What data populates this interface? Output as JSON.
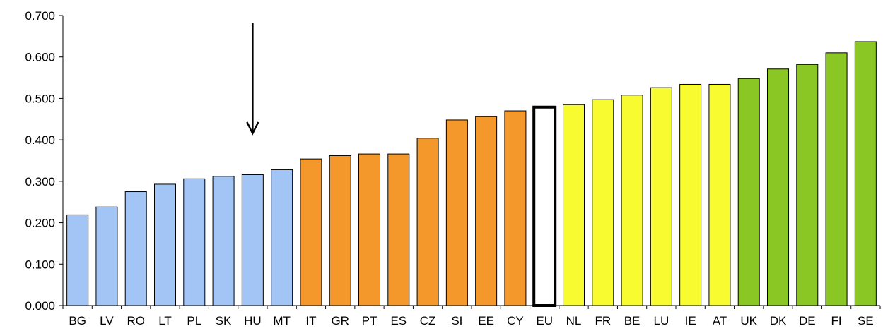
{
  "chart_data": {
    "type": "bar",
    "title": "",
    "xlabel": "",
    "ylabel": "",
    "ylim": [
      0,
      0.7
    ],
    "yticks": [
      "0.000",
      "0.100",
      "0.200",
      "0.300",
      "0.400",
      "0.500",
      "0.600",
      "0.700"
    ],
    "categories": [
      "BG",
      "LV",
      "RO",
      "LT",
      "PL",
      "SK",
      "HU",
      "MT",
      "IT",
      "GR",
      "PT",
      "ES",
      "CZ",
      "SI",
      "EE",
      "CY",
      "EU",
      "NL",
      "FR",
      "BE",
      "LU",
      "IE",
      "AT",
      "UK",
      "DK",
      "DE",
      "FI",
      "SE"
    ],
    "values": [
      0.219,
      0.238,
      0.275,
      0.293,
      0.306,
      0.312,
      0.316,
      0.328,
      0.354,
      0.362,
      0.366,
      0.366,
      0.404,
      0.448,
      0.456,
      0.47,
      0.479,
      0.485,
      0.497,
      0.508,
      0.526,
      0.534,
      0.534,
      0.548,
      0.571,
      0.582,
      0.61,
      0.637
    ],
    "groups": [
      "blue",
      "blue",
      "blue",
      "blue",
      "blue",
      "blue",
      "blue",
      "blue",
      "orange",
      "orange",
      "orange",
      "orange",
      "orange",
      "orange",
      "orange",
      "orange",
      "eu",
      "yellow",
      "yellow",
      "yellow",
      "yellow",
      "yellow",
      "yellow",
      "green",
      "green",
      "green",
      "green",
      "green"
    ],
    "colors": {
      "blue": "#a3c5f5",
      "orange": "#f5982b",
      "eu": "#ffffff",
      "yellow": "#f7fb2f",
      "green": "#8ac724"
    },
    "highlight_arrow_category": "HU",
    "grid": false,
    "legend": "none"
  }
}
